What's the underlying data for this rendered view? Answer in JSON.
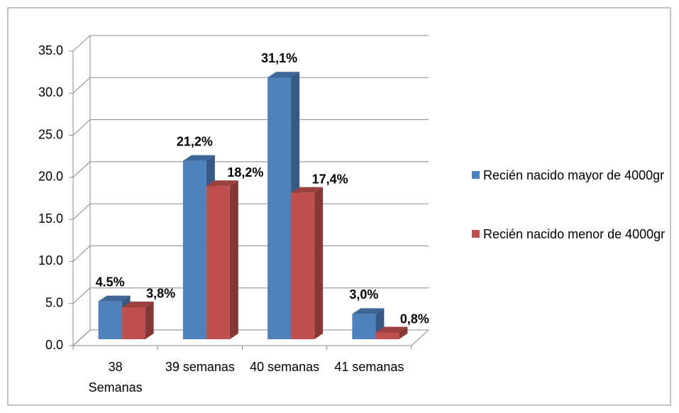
{
  "chart_data": {
    "type": "bar3d",
    "categories": [
      "38 Semanas",
      "39 semanas",
      "40 semanas",
      "41 semanas"
    ],
    "series": [
      {
        "name": "Recién nacido mayor de 4000gr",
        "color": "#4f81bd",
        "values": [
          4.5,
          21.2,
          31.1,
          3.0
        ],
        "value_labels": [
          "4.5%",
          "21,2%",
          "31,1%",
          "3,0%"
        ]
      },
      {
        "name": "Recién nacido menor de 4000gr",
        "color": "#c0504d",
        "values": [
          3.8,
          18.2,
          17.4,
          0.8
        ],
        "value_labels": [
          "3,8%",
          "18,2%",
          "17,4%",
          "0,8%"
        ]
      }
    ],
    "ylim": [
      0,
      35
    ],
    "yticks": [
      {
        "value": 0,
        "label": "0.0"
      },
      {
        "value": 5,
        "label": "5.0"
      },
      {
        "value": 10,
        "label": "10.0"
      },
      {
        "value": 15,
        "label": "15.0"
      },
      {
        "value": 20,
        "label": "20.0"
      },
      {
        "value": 25,
        "label": "25.0"
      },
      {
        "value": 30,
        "label": "30.0"
      },
      {
        "value": 35,
        "label": "35.0"
      }
    ],
    "grid": true,
    "legend": "right"
  }
}
